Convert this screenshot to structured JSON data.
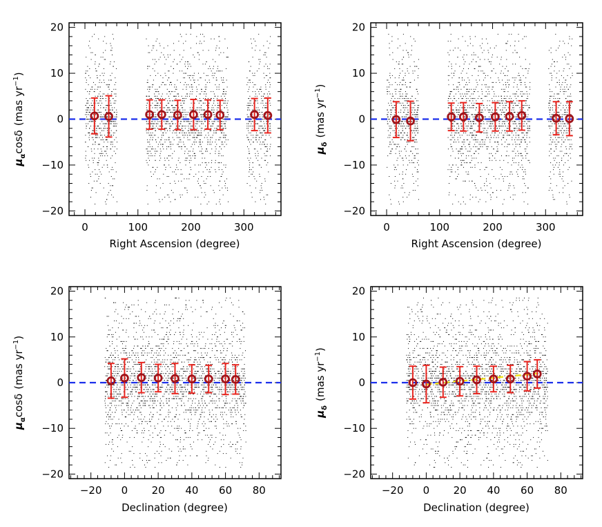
{
  "figure": {
    "ylabel_ra_sub": "α",
    "ylabel_ra_cos": "cosδ",
    "ylabel_dec_sub": "δ",
    "ylabel_unit_open": "(mas yr",
    "ylabel_unit_exp": "−1",
    "ylabel_unit_close": ")",
    "ylabel_mu": "μ",
    "colors": {
      "errorbar": "#e8251f",
      "marker": "#a0141a",
      "zero_line": "#1a2eeb",
      "fit_line": "#f2e41a",
      "scatter": "#000000"
    }
  },
  "chart_data": [
    {
      "type": "scatter",
      "id": "ra-pmra",
      "xlabel": "Right Ascension (degree)",
      "ylabel": "μαcosδ (mas yr−1)",
      "xlim": [
        -30,
        370
      ],
      "ylim": [
        -21,
        21
      ],
      "xticks": [
        0,
        100,
        200,
        300
      ],
      "yticks": [
        -20,
        -10,
        0,
        10,
        20
      ],
      "xtick_labels": [
        "0",
        "100",
        "200",
        "300"
      ],
      "ytick_labels": [
        "−20",
        "−10",
        "0",
        "10",
        "20"
      ],
      "background_ranges": [
        [
          0,
          60
        ],
        [
          115,
          270
        ],
        [
          305,
          350
        ]
      ],
      "zero_line": 0,
      "binned": [
        {
          "x": 18,
          "y": 0.7,
          "err": 3.9
        },
        {
          "x": 45,
          "y": 0.6,
          "err": 4.5
        },
        {
          "x": 122,
          "y": 1.0,
          "err": 3.2
        },
        {
          "x": 145,
          "y": 1.0,
          "err": 3.2
        },
        {
          "x": 175,
          "y": 0.9,
          "err": 3.2
        },
        {
          "x": 205,
          "y": 1.0,
          "err": 3.3
        },
        {
          "x": 232,
          "y": 1.0,
          "err": 3.2
        },
        {
          "x": 255,
          "y": 0.9,
          "err": 3.2
        },
        {
          "x": 320,
          "y": 1.0,
          "err": 3.5
        },
        {
          "x": 345,
          "y": 0.8,
          "err": 3.8
        }
      ]
    },
    {
      "type": "scatter",
      "id": "ra-pmdec",
      "xlabel": "Right Ascension (degree)",
      "ylabel": "μδ (mas yr−1)",
      "xlim": [
        -30,
        370
      ],
      "ylim": [
        -21,
        21
      ],
      "xticks": [
        0,
        100,
        200,
        300
      ],
      "yticks": [
        -20,
        -10,
        0,
        10,
        20
      ],
      "xtick_labels": [
        "0",
        "100",
        "200",
        "300"
      ],
      "ytick_labels": [
        "−20",
        "−10",
        "0",
        "10",
        "20"
      ],
      "background_ranges": [
        [
          0,
          60
        ],
        [
          115,
          270
        ],
        [
          305,
          350
        ]
      ],
      "zero_line": 0,
      "binned": [
        {
          "x": 18,
          "y": -0.1,
          "err": 3.9
        },
        {
          "x": 45,
          "y": -0.4,
          "err": 4.3
        },
        {
          "x": 122,
          "y": 0.5,
          "err": 3.0
        },
        {
          "x": 145,
          "y": 0.5,
          "err": 3.1
        },
        {
          "x": 175,
          "y": 0.3,
          "err": 3.1
        },
        {
          "x": 205,
          "y": 0.5,
          "err": 3.1
        },
        {
          "x": 232,
          "y": 0.6,
          "err": 3.2
        },
        {
          "x": 255,
          "y": 0.8,
          "err": 3.2
        },
        {
          "x": 320,
          "y": 0.2,
          "err": 3.6
        },
        {
          "x": 345,
          "y": 0.1,
          "err": 3.7
        }
      ]
    },
    {
      "type": "scatter",
      "id": "dec-pmra",
      "xlabel": "Declination (degree)",
      "ylabel": "μαcosδ (mas yr−1)",
      "xlim": [
        -33,
        93
      ],
      "ylim": [
        -21,
        21
      ],
      "xticks": [
        -20,
        0,
        20,
        40,
        60,
        80
      ],
      "yticks": [
        -20,
        -10,
        0,
        10,
        20
      ],
      "xtick_labels": [
        "−20",
        "0",
        "20",
        "40",
        "60",
        "80"
      ],
      "ytick_labels": [
        "−20",
        "−10",
        "0",
        "10",
        "20"
      ],
      "background_ranges": [
        [
          -12,
          72
        ]
      ],
      "zero_line": 0,
      "binned": [
        {
          "x": -8,
          "y": 0.4,
          "err": 3.8
        },
        {
          "x": 0,
          "y": 1.0,
          "err": 4.2
        },
        {
          "x": 10,
          "y": 1.1,
          "err": 3.3
        },
        {
          "x": 20,
          "y": 1.0,
          "err": 3.0
        },
        {
          "x": 30,
          "y": 0.9,
          "err": 3.3
        },
        {
          "x": 40,
          "y": 0.8,
          "err": 3.1
        },
        {
          "x": 50,
          "y": 0.8,
          "err": 3.0
        },
        {
          "x": 60,
          "y": 0.8,
          "err": 3.4
        },
        {
          "x": 66,
          "y": 0.7,
          "err": 3.2
        }
      ]
    },
    {
      "type": "scatter",
      "id": "dec-pmdec",
      "xlabel": "Declination (degree)",
      "ylabel": "μδ (mas yr−1)",
      "xlim": [
        -33,
        93
      ],
      "ylim": [
        -21,
        21
      ],
      "xticks": [
        -20,
        0,
        20,
        40,
        60,
        80
      ],
      "yticks": [
        -20,
        -10,
        0,
        10,
        20
      ],
      "xtick_labels": [
        "−20",
        "0",
        "20",
        "40",
        "60",
        "80"
      ],
      "ytick_labels": [
        "−20",
        "−10",
        "0",
        "10",
        "20"
      ],
      "background_ranges": [
        [
          -12,
          72
        ]
      ],
      "zero_line": 0,
      "fit_line": {
        "from": [
          0,
          -0.4
        ],
        "to": [
          66,
          2.0
        ]
      },
      "binned": [
        {
          "x": -8,
          "y": 0.0,
          "err": 3.6
        },
        {
          "x": 0,
          "y": -0.3,
          "err": 4.1
        },
        {
          "x": 10,
          "y": 0.1,
          "err": 3.3
        },
        {
          "x": 20,
          "y": 0.3,
          "err": 3.2
        },
        {
          "x": 30,
          "y": 0.6,
          "err": 3.0
        },
        {
          "x": 40,
          "y": 0.8,
          "err": 2.8
        },
        {
          "x": 50,
          "y": 0.8,
          "err": 3.0
        },
        {
          "x": 60,
          "y": 1.4,
          "err": 3.2
        },
        {
          "x": 66,
          "y": 1.9,
          "err": 3.1
        }
      ]
    }
  ]
}
